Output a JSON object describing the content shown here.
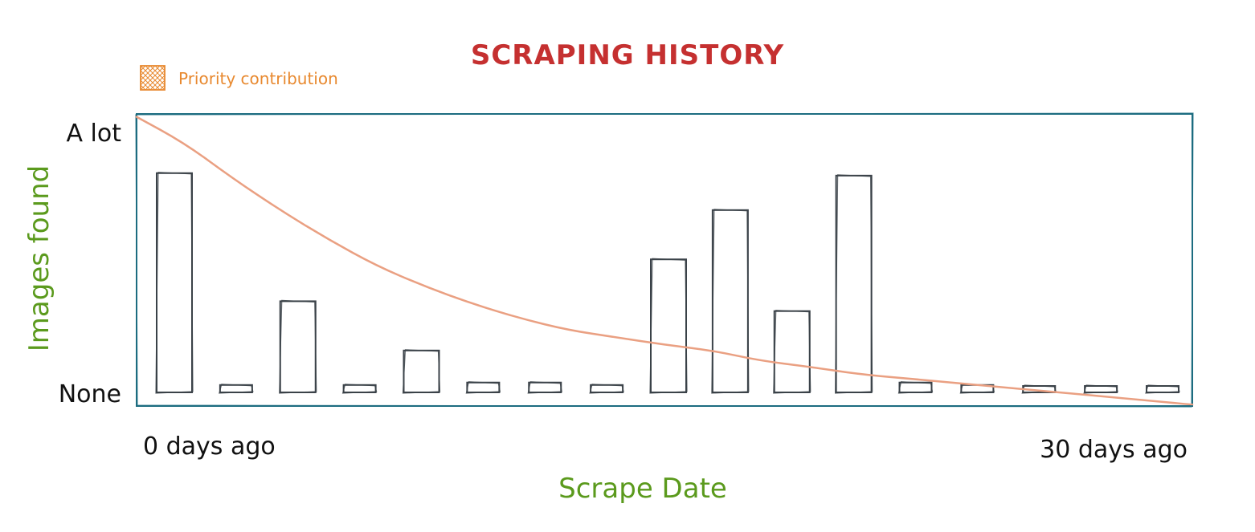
{
  "chart_data": {
    "type": "bar",
    "title": "SCRAPING HISTORY",
    "xlabel": "Scrape Date",
    "ylabel": "Images found",
    "x_tick_labels": [
      "0 days ago",
      "30 days ago"
    ],
    "y_tick_labels": [
      "None",
      "A lot"
    ],
    "ylim": [
      0,
      1
    ],
    "legend": {
      "placement": "top-left",
      "entries": [
        "Priority contribution"
      ]
    },
    "values": [
      0.89,
      0.03,
      0.37,
      0.03,
      0.17,
      0.04,
      0.04,
      0.03,
      0.54,
      0.74,
      0.33,
      0.88,
      0.04,
      0.03,
      0.02,
      0.02,
      0.02
    ],
    "series": [
      {
        "name": "Priority contribution",
        "type": "line",
        "values": [
          0.99,
          0.9,
          0.78,
          0.67,
          0.57,
          0.48,
          0.41,
          0.35,
          0.3,
          0.26,
          0.235,
          0.21,
          0.19,
          0.155,
          0.135,
          0.11,
          0.095,
          0.08,
          0.065,
          0.05,
          0.035,
          0.02,
          0.005
        ]
      }
    ],
    "colors": {
      "title": "#c53030",
      "axis_label": "#5b9a1d",
      "legend": "#e8892f",
      "frame": "#1c6c80",
      "bar_stroke": "#3b4249",
      "line": "#eaa082",
      "text": "#111111"
    },
    "grid": false
  }
}
